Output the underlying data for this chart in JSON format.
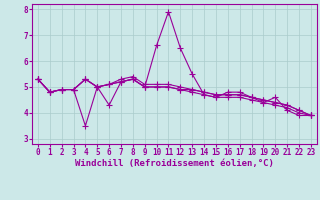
{
  "xlabel": "Windchill (Refroidissement éolien,°C)",
  "background_color": "#cce8e8",
  "line_color": "#990099",
  "grid_color": "#aacccc",
  "xlim": [
    -0.5,
    23.5
  ],
  "ylim": [
    2.8,
    8.2
  ],
  "yticks": [
    3,
    4,
    5,
    6,
    7,
    8
  ],
  "xticks": [
    0,
    1,
    2,
    3,
    4,
    5,
    6,
    7,
    8,
    9,
    10,
    11,
    12,
    13,
    14,
    15,
    16,
    17,
    18,
    19,
    20,
    21,
    22,
    23
  ],
  "series": [
    [
      5.3,
      4.8,
      4.9,
      4.9,
      3.5,
      5.0,
      4.3,
      5.2,
      5.3,
      5.0,
      6.6,
      7.9,
      6.5,
      5.5,
      4.7,
      4.6,
      4.8,
      4.8,
      4.6,
      4.4,
      4.6,
      4.1,
      3.9,
      3.9
    ],
    [
      5.3,
      4.8,
      4.9,
      4.9,
      5.3,
      5.0,
      5.1,
      5.2,
      5.3,
      5.0,
      5.0,
      5.0,
      4.9,
      4.9,
      4.8,
      4.7,
      4.7,
      4.7,
      4.6,
      4.5,
      4.4,
      4.3,
      4.1,
      3.9
    ],
    [
      5.3,
      4.8,
      4.9,
      4.9,
      5.3,
      5.0,
      5.1,
      5.2,
      5.3,
      5.0,
      5.0,
      5.0,
      4.9,
      4.8,
      4.7,
      4.6,
      4.6,
      4.6,
      4.5,
      4.4,
      4.3,
      4.2,
      4.0,
      3.9
    ],
    [
      5.3,
      4.8,
      4.9,
      4.9,
      5.3,
      5.0,
      5.1,
      5.3,
      5.4,
      5.1,
      5.1,
      5.1,
      5.0,
      4.9,
      4.8,
      4.7,
      4.7,
      4.7,
      4.6,
      4.5,
      4.4,
      4.3,
      4.1,
      3.9
    ]
  ],
  "marker": "+",
  "markersize": 4,
  "linewidth": 0.8,
  "tick_fontsize": 5.5,
  "label_fontsize": 6.5
}
